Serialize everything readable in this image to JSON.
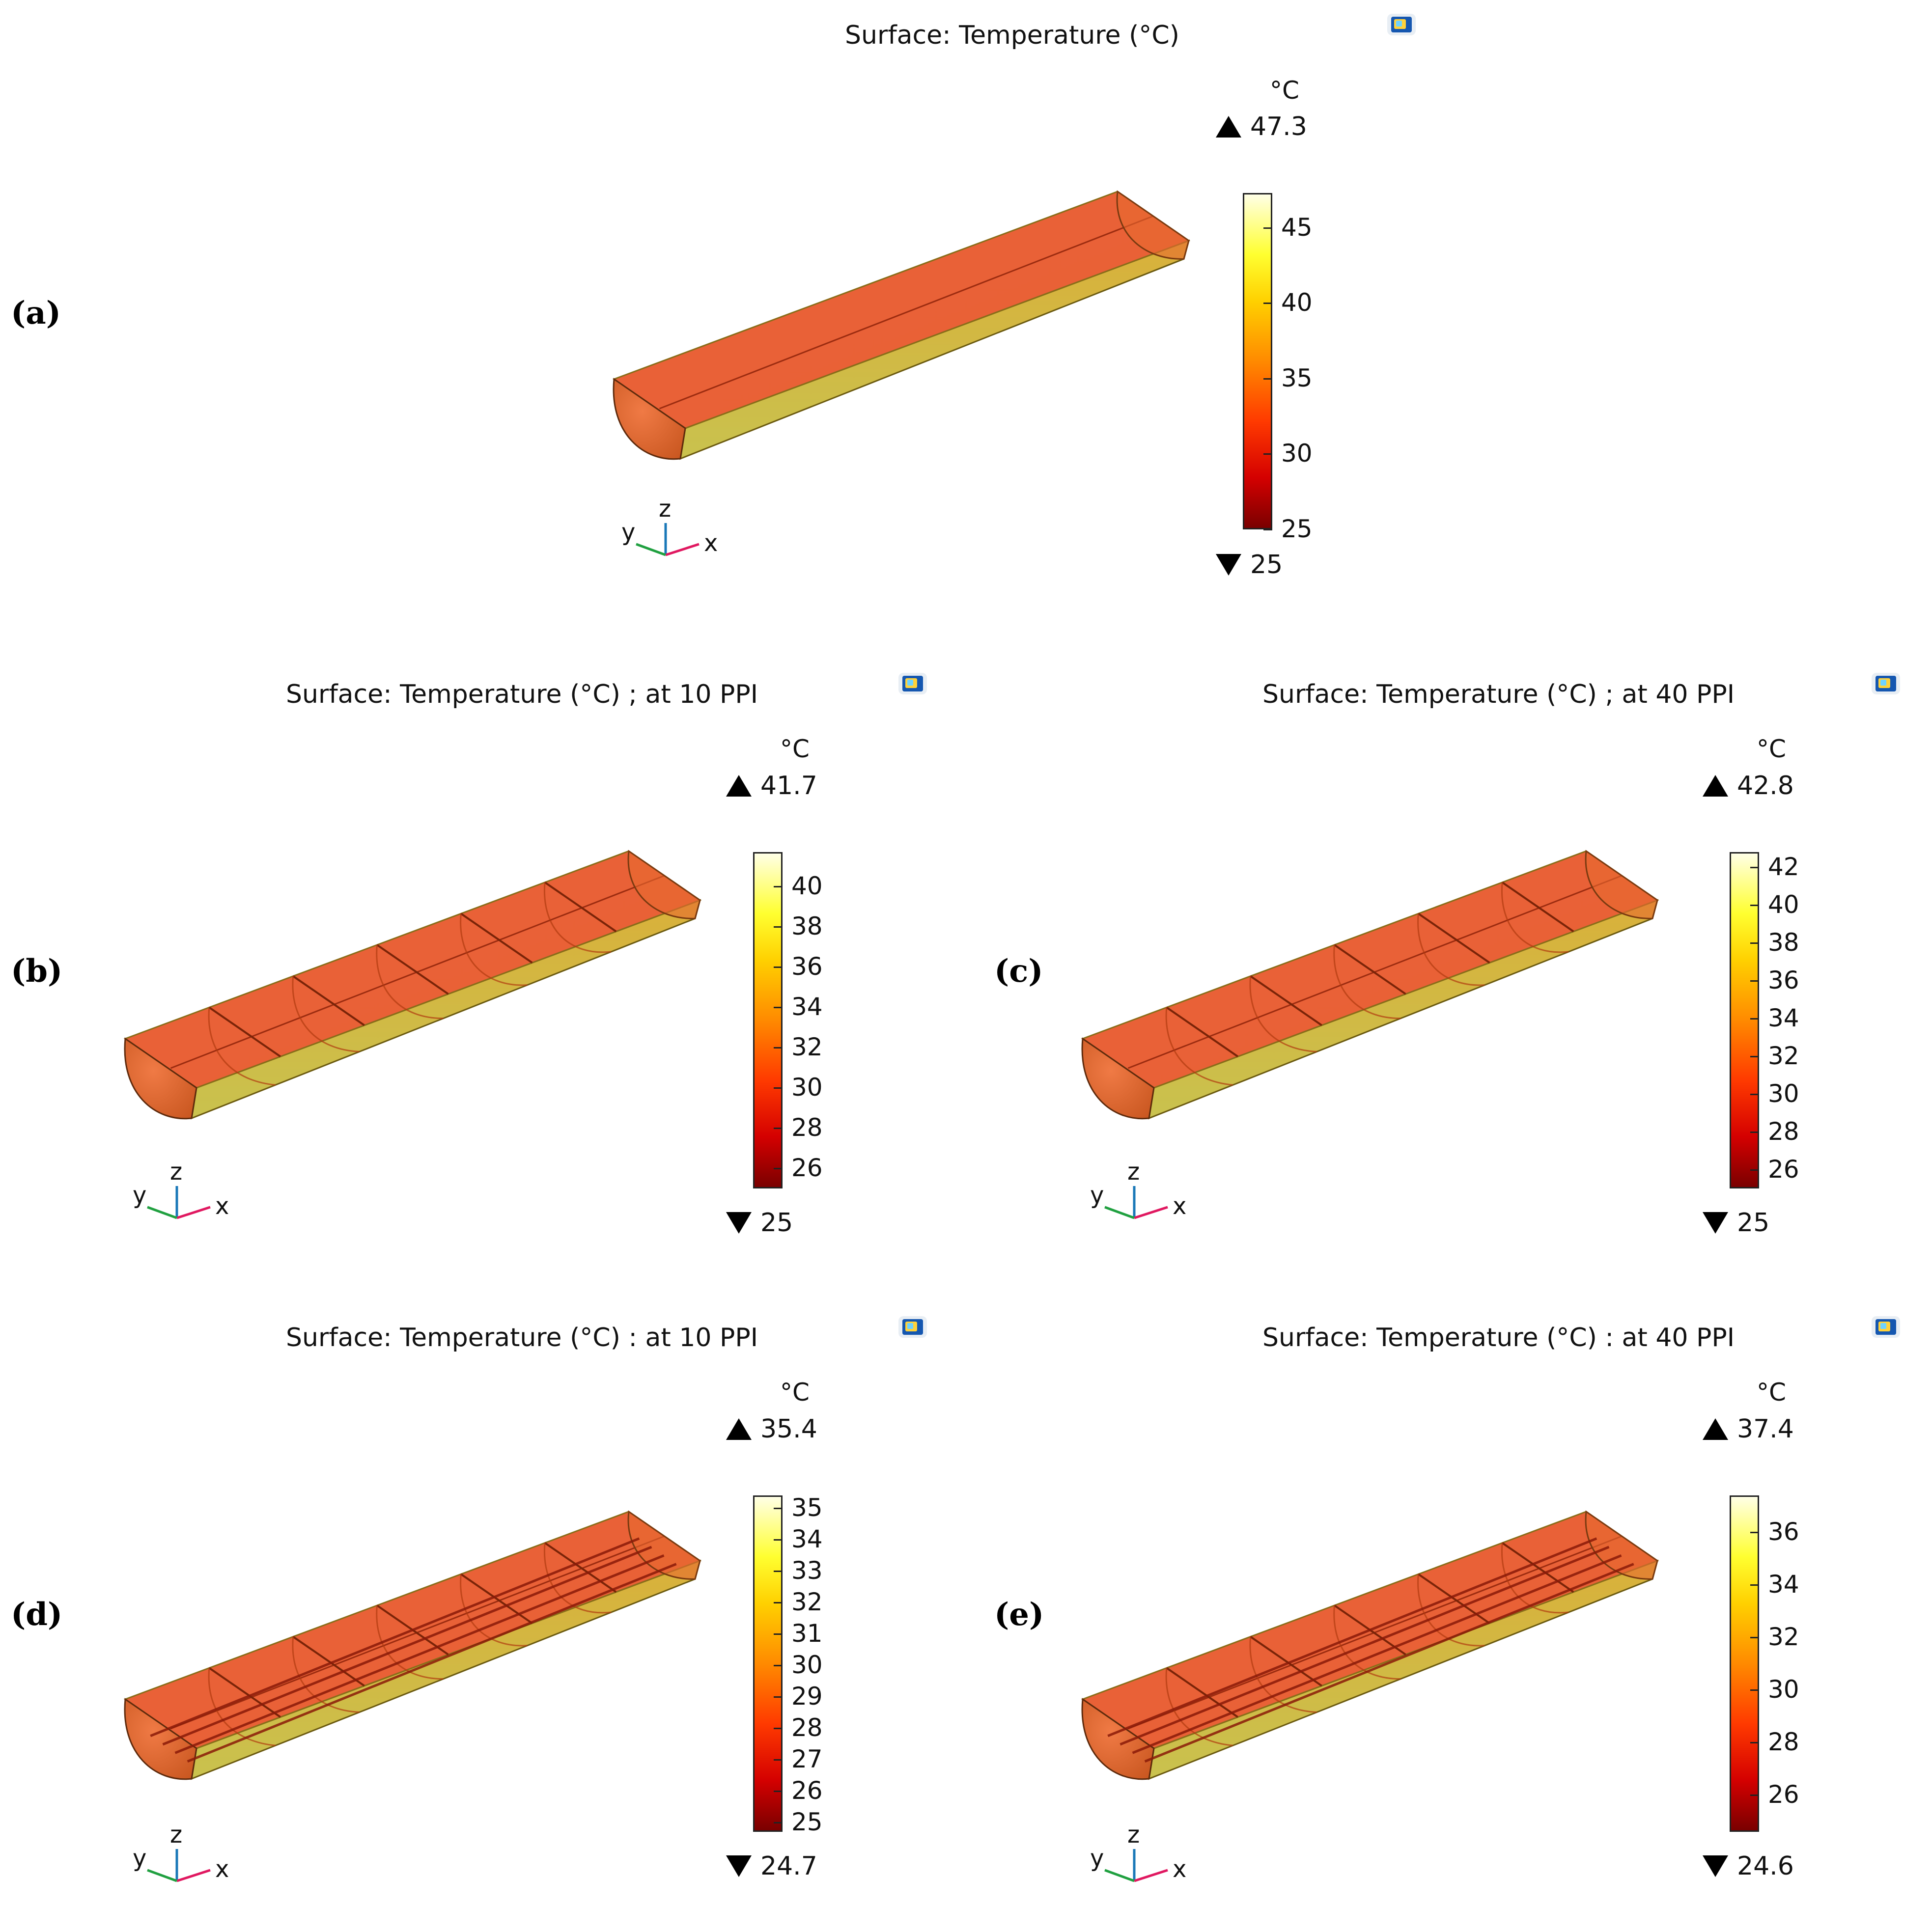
{
  "panels": [
    {
      "id": "a",
      "label": "(a)",
      "title": "Surface: Temperature (°C)",
      "unit": "°C",
      "max": "47.3",
      "min": "25",
      "ticks": [
        "45",
        "40",
        "35",
        "30",
        "25"
      ],
      "tick_values": [
        45,
        40,
        35,
        30,
        25
      ],
      "range": [
        25,
        47.3
      ],
      "baffles": 0,
      "rods": false
    },
    {
      "id": "b",
      "label": "(b)",
      "title": "Surface: Temperature (°C) ; at 10 PPI",
      "unit": "°C",
      "max": "41.7",
      "min": "25",
      "ticks": [
        "40",
        "38",
        "36",
        "34",
        "32",
        "30",
        "28",
        "26"
      ],
      "tick_values": [
        40,
        38,
        36,
        34,
        32,
        30,
        28,
        26
      ],
      "range": [
        25,
        41.7
      ],
      "baffles": 6,
      "rods": false
    },
    {
      "id": "c",
      "label": "(c)",
      "title": "Surface: Temperature (°C) ; at 40 PPI",
      "unit": "°C",
      "max": "42.8",
      "min": "25",
      "ticks": [
        "42",
        "40",
        "38",
        "36",
        "34",
        "32",
        "30",
        "28",
        "26"
      ],
      "tick_values": [
        42,
        40,
        38,
        36,
        34,
        32,
        30,
        28,
        26
      ],
      "range": [
        25,
        42.8
      ],
      "baffles": 6,
      "rods": false
    },
    {
      "id": "d",
      "label": "(d)",
      "title": "Surface: Temperature (°C) : at 10 PPI",
      "unit": "°C",
      "max": "35.4",
      "min": "24.7",
      "ticks": [
        "35",
        "34",
        "33",
        "32",
        "31",
        "30",
        "29",
        "28",
        "27",
        "26",
        "25"
      ],
      "tick_values": [
        35,
        34,
        33,
        32,
        31,
        30,
        29,
        28,
        27,
        26,
        25
      ],
      "range": [
        24.7,
        35.4
      ],
      "baffles": 6,
      "rods": true
    },
    {
      "id": "e",
      "label": "(e)",
      "title": "Surface: Temperature (°C) : at 40 PPI",
      "unit": "°C",
      "max": "37.4",
      "min": "24.6",
      "ticks": [
        "36",
        "34",
        "32",
        "30",
        "28",
        "26"
      ],
      "tick_values": [
        36,
        34,
        32,
        30,
        28,
        26
      ],
      "range": [
        24.6,
        37.4
      ],
      "baffles": 6,
      "rods": true
    }
  ],
  "axes_triad": {
    "x": "x",
    "y": "y",
    "z": "z"
  }
}
